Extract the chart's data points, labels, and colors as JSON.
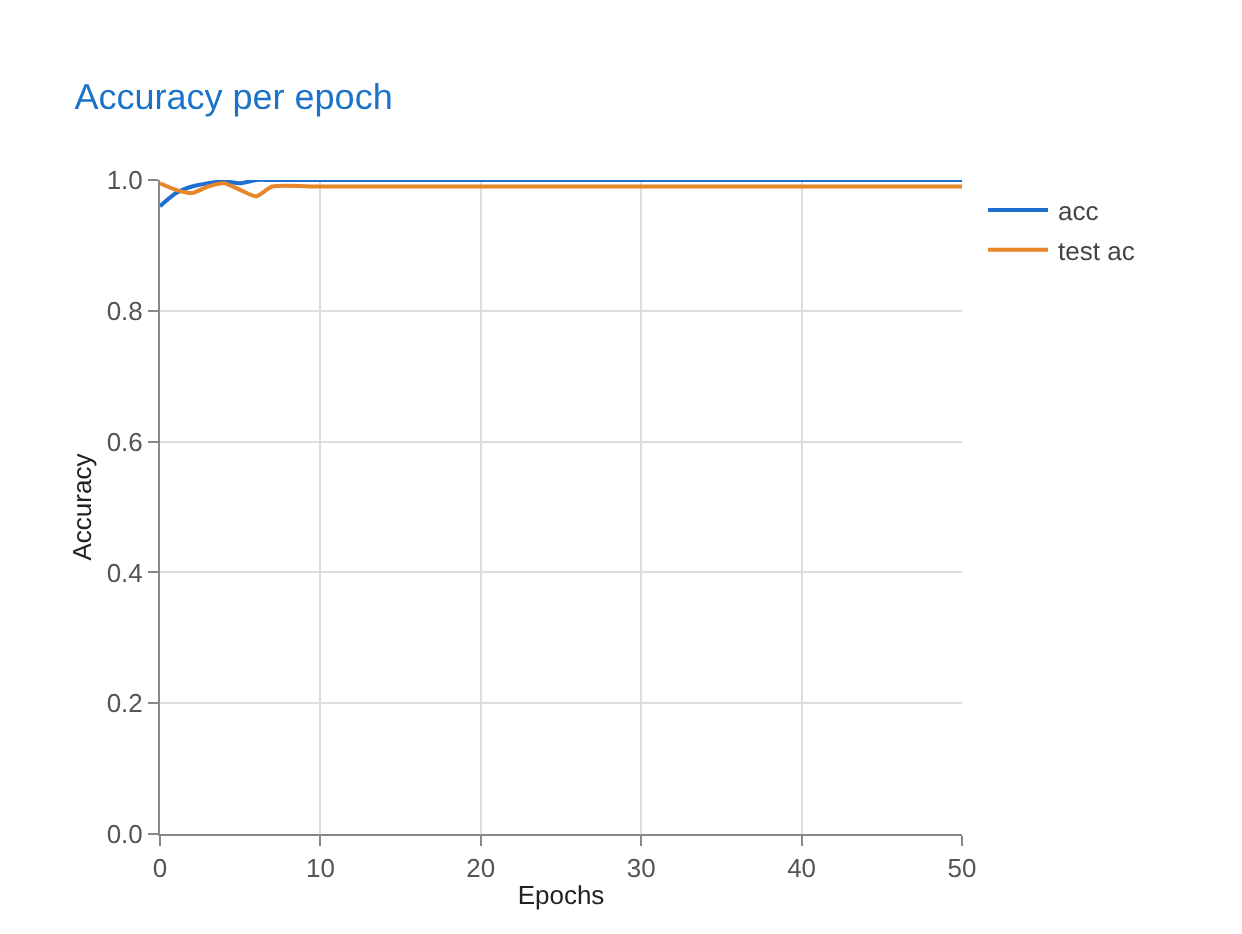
{
  "chart_data": {
    "type": "line",
    "title": "Accuracy per epoch",
    "xlabel": "Epochs",
    "ylabel": "Accuracy",
    "series": [
      {
        "name": "acc",
        "color": "#1f6fd1",
        "x": [
          0,
          1,
          2,
          3,
          4,
          5,
          6,
          7,
          10,
          20,
          30,
          40,
          50
        ],
        "values": [
          0.96,
          0.98,
          0.99,
          0.995,
          0.998,
          0.995,
          1.0,
          1.0,
          1.0,
          1.0,
          1.0,
          1.0,
          1.0
        ]
      },
      {
        "name": "test ac",
        "color": "#e8862a",
        "x": [
          0,
          1,
          2,
          3,
          4,
          5,
          6,
          7,
          10,
          20,
          30,
          40,
          50
        ],
        "values": [
          0.995,
          0.985,
          0.98,
          0.99,
          0.995,
          0.985,
          0.975,
          0.99,
          0.99,
          0.99,
          0.99,
          0.99,
          0.99
        ]
      }
    ],
    "xlim": [
      0,
      50
    ],
    "xticks": [
      0,
      10,
      20,
      30,
      40,
      50
    ],
    "ylim": [
      0,
      1.0
    ],
    "yticks": [
      {
        "value": 0,
        "label": "0.0"
      },
      {
        "value": 0.2,
        "label": "0.2"
      },
      {
        "value": 0.4,
        "label": "0.4"
      },
      {
        "value": 0.6,
        "label": "0.6"
      },
      {
        "value": 0.8,
        "label": "0.8"
      },
      {
        "value": 1.0,
        "label": "1.0"
      }
    ],
    "grid": true,
    "legend": "top right",
    "marker": "none",
    "line_style": "solid"
  }
}
